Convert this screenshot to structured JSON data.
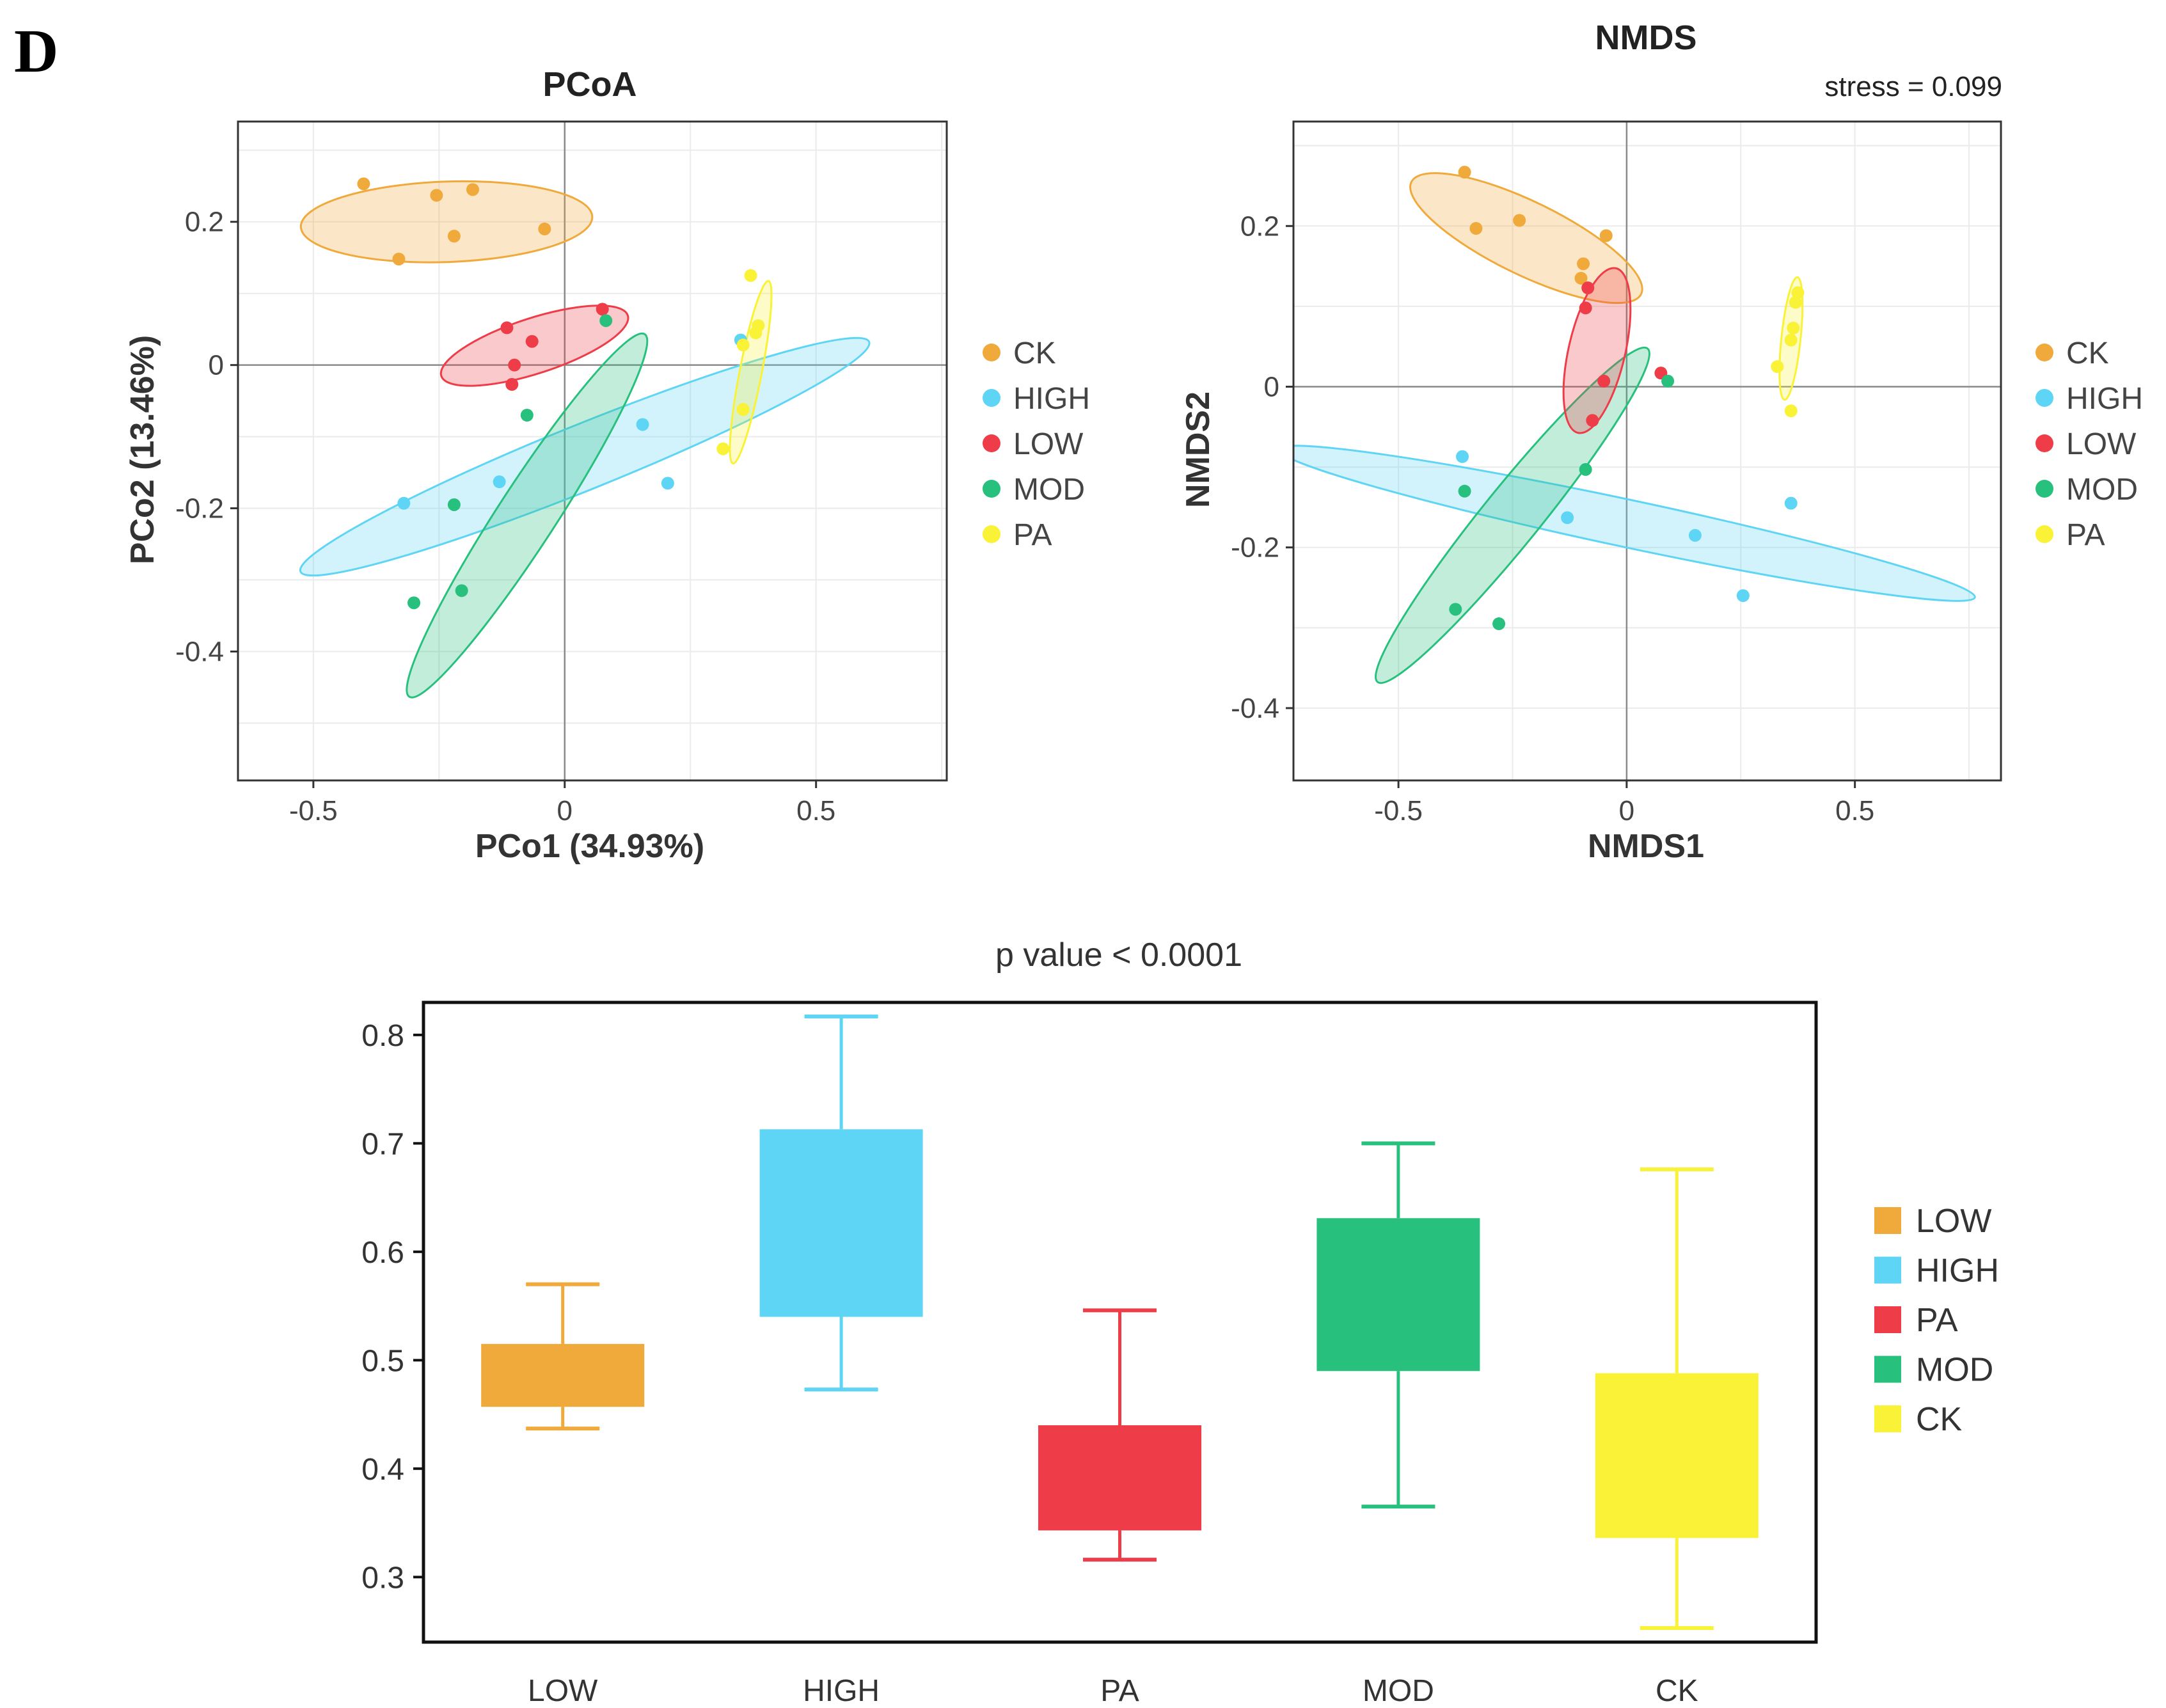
{
  "panel_letter": "D",
  "colors": {
    "CK": "#f0a93b",
    "HIGH": "#5ed5f4",
    "LOW": "#ee3d49",
    "MOD": "#27c07c",
    "PA": "#f9f236"
  },
  "chart_data": [
    {
      "id": "pcoa",
      "type": "scatter",
      "title": "PCoA",
      "subtitle": "",
      "xlabel": "PCo1 (34.93%)",
      "ylabel": "PCo2 (13.46%)",
      "xlim": [
        -0.65,
        0.76
      ],
      "ylim": [
        -0.58,
        0.34
      ],
      "xticks": [
        -0.5,
        0,
        0.5
      ],
      "xtick_labels": [
        "-0.5",
        "0",
        "0.5"
      ],
      "yticks": [
        0.2,
        0,
        -0.2,
        -0.4
      ],
      "ytick_labels": [
        "0.2",
        "0",
        "-0.2",
        "-0.4"
      ],
      "grid": true,
      "legend": [
        "CK",
        "HIGH",
        "LOW",
        "MOD",
        "PA"
      ],
      "ellipses": [
        {
          "group": "HIGH",
          "cx": 0.04,
          "cy": -0.128,
          "rx": 0.61,
          "ry": 0.065,
          "angle_deg": 22
        },
        {
          "group": "MOD",
          "cx": -0.075,
          "cy": -0.21,
          "rx": 0.43,
          "ry": 0.058,
          "angle_deg": 57
        },
        {
          "group": "LOW",
          "cx": -0.06,
          "cy": 0.027,
          "rx": 0.195,
          "ry": 0.055,
          "angle_deg": 18
        },
        {
          "group": "CK",
          "cx": -0.235,
          "cy": 0.2,
          "rx": 0.29,
          "ry": 0.08,
          "angle_deg": 2
        },
        {
          "group": "PA",
          "cx": 0.37,
          "cy": -0.01,
          "rx": 0.185,
          "ry": 0.022,
          "angle_deg": 79
        }
      ],
      "series": [
        {
          "name": "CK",
          "points": [
            [
              -0.4,
              0.253
            ],
            [
              -0.255,
              0.237
            ],
            [
              -0.183,
              0.245
            ],
            [
              -0.04,
              0.19
            ],
            [
              -0.22,
              0.18
            ],
            [
              -0.33,
              0.148
            ]
          ]
        },
        {
          "name": "HIGH",
          "points": [
            [
              -0.32,
              -0.193
            ],
            [
              -0.13,
              -0.163
            ],
            [
              0.155,
              -0.083
            ],
            [
              0.205,
              -0.165
            ],
            [
              0.35,
              0.035
            ]
          ]
        },
        {
          "name": "LOW",
          "points": [
            [
              -0.115,
              0.052
            ],
            [
              -0.065,
              0.033
            ],
            [
              -0.1,
              0.0
            ],
            [
              -0.105,
              -0.027
            ],
            [
              0.075,
              0.078
            ]
          ]
        },
        {
          "name": "MOD",
          "points": [
            [
              0.082,
              0.062
            ],
            [
              -0.075,
              -0.07
            ],
            [
              -0.22,
              -0.195
            ],
            [
              -0.205,
              -0.315
            ],
            [
              -0.3,
              -0.332
            ]
          ]
        },
        {
          "name": "PA",
          "points": [
            [
              0.37,
              0.125
            ],
            [
              0.385,
              0.055
            ],
            [
              0.355,
              0.028
            ],
            [
              0.38,
              0.045
            ],
            [
              0.355,
              -0.062
            ],
            [
              0.315,
              -0.117
            ]
          ]
        }
      ]
    },
    {
      "id": "nmds",
      "type": "scatter",
      "title": "NMDS",
      "subtitle": "stress = 0.099",
      "xlabel": "NMDS1",
      "ylabel": "NMDS2",
      "xlim": [
        -0.73,
        0.82
      ],
      "ylim": [
        -0.49,
        0.33
      ],
      "xticks": [
        -0.5,
        0,
        0.5
      ],
      "xtick_labels": [
        "-0.5",
        "0",
        "0.5"
      ],
      "yticks": [
        0.2,
        0,
        -0.2,
        -0.4
      ],
      "ytick_labels": [
        "0.2",
        "0",
        "-0.2",
        "-0.4"
      ],
      "grid": true,
      "legend": [
        "CK",
        "HIGH",
        "LOW",
        "MOD",
        "PA"
      ],
      "ellipses": [
        {
          "group": "HIGH",
          "cx": 0.0,
          "cy": -0.17,
          "rx": 0.78,
          "ry": 0.052,
          "angle_deg": -12
        },
        {
          "group": "MOD",
          "cx": -0.25,
          "cy": -0.16,
          "rx": 0.47,
          "ry": 0.063,
          "angle_deg": 51
        },
        {
          "group": "CK",
          "cx": -0.22,
          "cy": 0.185,
          "rx": 0.28,
          "ry": 0.08,
          "angle_deg": -26
        },
        {
          "group": "LOW",
          "cx": -0.065,
          "cy": 0.045,
          "rx": 0.185,
          "ry": 0.062,
          "angle_deg": 77
        },
        {
          "group": "PA",
          "cx": 0.36,
          "cy": 0.06,
          "rx": 0.135,
          "ry": 0.021,
          "angle_deg": 84
        }
      ],
      "series": [
        {
          "name": "CK",
          "points": [
            [
              -0.355,
              0.267
            ],
            [
              -0.33,
              0.197
            ],
            [
              -0.235,
              0.207
            ],
            [
              -0.045,
              0.188
            ],
            [
              -0.095,
              0.153
            ],
            [
              -0.1,
              0.135
            ]
          ]
        },
        {
          "name": "HIGH",
          "points": [
            [
              -0.36,
              -0.087
            ],
            [
              -0.13,
              -0.163
            ],
            [
              0.15,
              -0.185
            ],
            [
              0.255,
              -0.26
            ],
            [
              0.36,
              -0.145
            ]
          ]
        },
        {
          "name": "LOW",
          "points": [
            [
              -0.085,
              0.123
            ],
            [
              -0.09,
              0.098
            ],
            [
              -0.05,
              0.007
            ],
            [
              0.075,
              0.017
            ],
            [
              -0.075,
              -0.042
            ]
          ]
        },
        {
          "name": "MOD",
          "points": [
            [
              0.09,
              0.007
            ],
            [
              -0.09,
              -0.103
            ],
            [
              -0.355,
              -0.13
            ],
            [
              -0.375,
              -0.277
            ],
            [
              -0.28,
              -0.295
            ]
          ]
        },
        {
          "name": "PA",
          "points": [
            [
              0.375,
              0.117
            ],
            [
              0.37,
              0.105
            ],
            [
              0.365,
              0.073
            ],
            [
              0.36,
              0.058
            ],
            [
              0.33,
              0.025
            ],
            [
              0.36,
              -0.03
            ]
          ]
        }
      ]
    },
    {
      "id": "boxplot",
      "type": "box",
      "title": "p value < 0.0001",
      "xlabel": "",
      "ylabel": "",
      "ylim": [
        0.24,
        0.83
      ],
      "yticks": [
        0.8,
        0.7,
        0.6,
        0.5,
        0.4,
        0.3
      ],
      "ytick_labels": [
        "0.8",
        "0.7",
        "0.6",
        "0.5",
        "0.4",
        "0.3"
      ],
      "grid": false,
      "categories": [
        "LOW",
        "HIGH",
        "PA",
        "MOD",
        "CK"
      ],
      "boxes": [
        {
          "name": "LOW",
          "color": "#f0a93b",
          "min": 0.437,
          "q1": 0.457,
          "q3": 0.515,
          "max": 0.57
        },
        {
          "name": "HIGH",
          "color": "#5ed5f4",
          "min": 0.473,
          "q1": 0.54,
          "q3": 0.713,
          "max": 0.817
        },
        {
          "name": "PA",
          "color": "#ee3d49",
          "min": 0.316,
          "q1": 0.343,
          "q3": 0.44,
          "max": 0.546
        },
        {
          "name": "MOD",
          "color": "#27c07c",
          "min": 0.365,
          "q1": 0.49,
          "q3": 0.631,
          "max": 0.7
        },
        {
          "name": "CK",
          "color": "#f9f236",
          "min": 0.253,
          "q1": 0.336,
          "q3": 0.488,
          "max": 0.676
        }
      ],
      "legend": [
        "LOW",
        "HIGH",
        "PA",
        "MOD",
        "CK"
      ]
    }
  ]
}
